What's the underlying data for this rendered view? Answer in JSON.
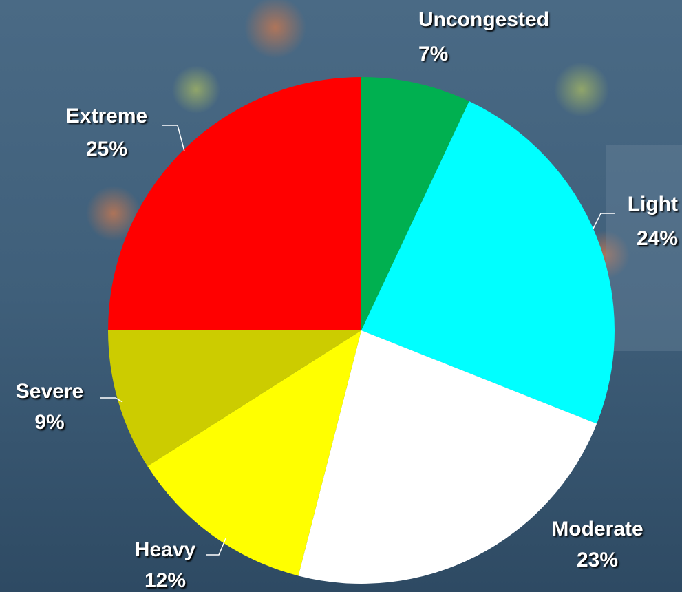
{
  "chart_data": {
    "type": "pie",
    "categories": [
      "Uncongested",
      "Light",
      "Moderate",
      "Heavy",
      "Severe",
      "Extreme"
    ],
    "values": [
      7,
      24,
      23,
      12,
      9,
      25
    ],
    "value_labels": [
      "7%",
      "24%",
      "23%",
      "12%",
      "9%",
      "25%"
    ],
    "colors": [
      "#00b050",
      "#00ffff",
      "#ffffff",
      "#ffff00",
      "#cccc00",
      "#ff0000"
    ]
  }
}
